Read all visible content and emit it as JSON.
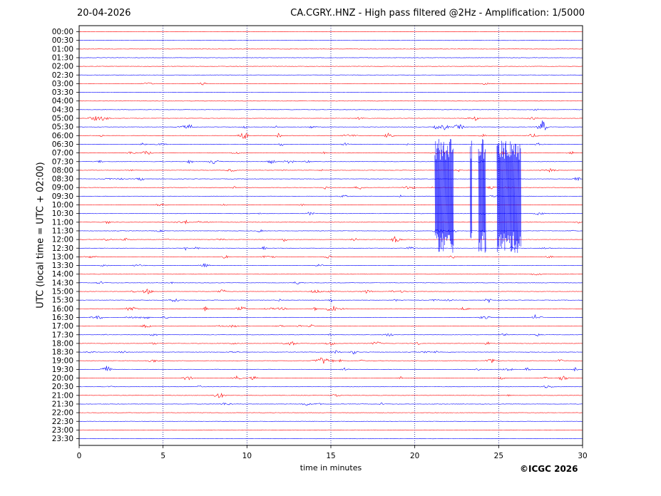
{
  "header": {
    "date": "20-04-2026",
    "title": "CA.CGRY..HNZ - High pass filtered @2Hz - Amplification: 1/5000"
  },
  "footer": {
    "copyright": "©ICGC 2026"
  },
  "chart_data": {
    "type": "line",
    "title": "CA.CGRY..HNZ - High pass filtered @2Hz - Amplification: 1/5000",
    "xlabel": "time in minutes",
    "ylabel": "UTC (local time = UTC + 02:00)",
    "xlim": [
      0,
      30
    ],
    "x_ticks": [
      "0",
      "5",
      "10",
      "15",
      "20",
      "25",
      "30"
    ],
    "x_tick_values": [
      0,
      5,
      10,
      15,
      20,
      25,
      30
    ],
    "y_ticks": [
      "00:00",
      "00:30",
      "01:00",
      "01:30",
      "02:00",
      "02:30",
      "03:00",
      "03:30",
      "04:00",
      "04:30",
      "05:00",
      "05:30",
      "06:00",
      "06:30",
      "07:00",
      "07:30",
      "08:00",
      "08:30",
      "09:00",
      "09:30",
      "10:00",
      "10:30",
      "11:00",
      "11:30",
      "12:00",
      "12:30",
      "13:00",
      "13:30",
      "14:00",
      "14:30",
      "15:00",
      "15:30",
      "16:00",
      "16:30",
      "17:00",
      "17:30",
      "18:00",
      "18:30",
      "19:00",
      "19:30",
      "20:00",
      "20:30",
      "21:00",
      "21:30",
      "22:00",
      "22:30",
      "23:00",
      "23:30"
    ],
    "grid": "vertical dotted lines at each x tick",
    "trace_colors": [
      "#ff0000",
      "#0000ff"
    ],
    "trace_activity": [
      0,
      0,
      0,
      0,
      0,
      0,
      0.2,
      0,
      0,
      0.1,
      0.5,
      0.8,
      0.7,
      0.4,
      0.6,
      0.5,
      0.5,
      0.3,
      0.5,
      0.2,
      0.2,
      0.3,
      0.4,
      0.4,
      0.6,
      0.4,
      0.4,
      0.3,
      0.1,
      0.2,
      0.6,
      0.5,
      0.7,
      0.6,
      0.4,
      0.4,
      0.5,
      0.5,
      0.6,
      0.5,
      0.5,
      0.2,
      0.3,
      0.3,
      0,
      0,
      0,
      0
    ],
    "event": {
      "start_row": "06:30",
      "end_row": "12:30",
      "x_range_minutes": [
        21.2,
        26.3
      ],
      "description_visible": false
    }
  }
}
